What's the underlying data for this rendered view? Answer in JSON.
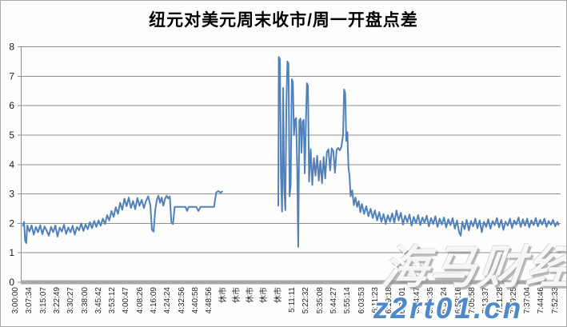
{
  "watermarks": {
    "brand": "海马财经",
    "url": "z2rt01.cn",
    "url_color": "#4e8ac9"
  },
  "chart_data": {
    "type": "line",
    "title": "纽元对美元周末收市/周一开盘点差",
    "xlabel": "",
    "ylabel": "",
    "ylim": [
      0,
      8
    ],
    "yticks": [
      0,
      1,
      2,
      3,
      4,
      5,
      6,
      7,
      8
    ],
    "grid": "horizontal",
    "legend": "none",
    "x_label_rotation": -90,
    "line_color": "#4f81bd",
    "gridline_color": "#8f8f8f",
    "axis_color": "#a8a8a8",
    "x_labels": [
      "3:00:00",
      "3:07:34",
      "3:15:07",
      "3:22:49",
      "3:30:27",
      "3:38:00",
      "3:45:42",
      "3:53:12",
      "4:00:47",
      "4:08:26",
      "4:16:09",
      "4:24:24",
      "4:32:56",
      "4:40:58",
      "4:48:56",
      "休市",
      "休市",
      "休市",
      "休市",
      "休市",
      "5:11:11",
      "5:22:32",
      "5:35:08",
      "5:44:27",
      "5:55:14",
      "6:03:53",
      "6:11:23",
      "6:19:18",
      "6:27:01",
      "6:34:47",
      "6:42:35",
      "6:50:24",
      "6:58:16",
      "7:05:58",
      "7:13:37",
      "7:21:28",
      "7:29:25",
      "7:37:04",
      "7:44:46",
      "7:52:33"
    ],
    "series": [
      {
        "name": "周末收市/周一开盘点差",
        "note": "x = fraction of plot width (0=left axis, 1=right edge); gap between segments = 休市 market closure",
        "segments": [
          [
            [
              0.004,
              1.92
            ],
            [
              0.006,
              2.05
            ],
            [
              0.008,
              1.42
            ],
            [
              0.01,
              1.33
            ],
            [
              0.012,
              1.93
            ],
            [
              0.016,
              1.72
            ],
            [
              0.02,
              1.93
            ],
            [
              0.024,
              1.62
            ],
            [
              0.028,
              1.88
            ],
            [
              0.032,
              1.7
            ],
            [
              0.036,
              1.94
            ],
            [
              0.04,
              1.63
            ],
            [
              0.044,
              1.9
            ],
            [
              0.048,
              1.75
            ],
            [
              0.052,
              1.58
            ],
            [
              0.056,
              1.88
            ],
            [
              0.06,
              1.7
            ],
            [
              0.064,
              1.93
            ],
            [
              0.068,
              1.55
            ],
            [
              0.072,
              1.86
            ],
            [
              0.076,
              1.72
            ],
            [
              0.08,
              1.95
            ],
            [
              0.084,
              1.64
            ],
            [
              0.088,
              1.86
            ],
            [
              0.092,
              1.7
            ],
            [
              0.096,
              1.92
            ],
            [
              0.1,
              1.62
            ],
            [
              0.104,
              1.88
            ],
            [
              0.108,
              1.76
            ],
            [
              0.112,
              2.0
            ],
            [
              0.116,
              1.74
            ],
            [
              0.12,
              1.96
            ],
            [
              0.124,
              1.8
            ],
            [
              0.128,
              2.04
            ],
            [
              0.132,
              1.84
            ],
            [
              0.136,
              2.08
            ],
            [
              0.14,
              1.88
            ],
            [
              0.144,
              2.1
            ],
            [
              0.148,
              1.92
            ],
            [
              0.152,
              2.16
            ],
            [
              0.156,
              1.98
            ],
            [
              0.16,
              2.28
            ],
            [
              0.164,
              2.1
            ],
            [
              0.168,
              2.42
            ],
            [
              0.172,
              2.22
            ],
            [
              0.176,
              2.55
            ],
            [
              0.18,
              2.32
            ],
            [
              0.184,
              2.7
            ],
            [
              0.188,
              2.46
            ],
            [
              0.192,
              2.84
            ],
            [
              0.196,
              2.58
            ],
            [
              0.2,
              2.88
            ],
            [
              0.204,
              2.52
            ],
            [
              0.208,
              2.76
            ],
            [
              0.212,
              2.48
            ],
            [
              0.216,
              2.86
            ],
            [
              0.22,
              2.6
            ],
            [
              0.224,
              2.8
            ],
            [
              0.228,
              2.52
            ],
            [
              0.232,
              2.76
            ],
            [
              0.236,
              2.92
            ],
            [
              0.24,
              2.62
            ],
            [
              0.243,
              1.78
            ],
            [
              0.246,
              1.72
            ],
            [
              0.249,
              2.45
            ],
            [
              0.252,
              2.8
            ],
            [
              0.255,
              2.94
            ],
            [
              0.258,
              2.7
            ],
            [
              0.261,
              2.88
            ],
            [
              0.264,
              2.6
            ],
            [
              0.267,
              2.82
            ],
            [
              0.27,
              2.94
            ],
            [
              0.273,
              2.85
            ],
            [
              0.276,
              2.92
            ],
            [
              0.279,
              2.02
            ],
            [
              0.282,
              1.98
            ],
            [
              0.285,
              2.56
            ],
            [
              0.295,
              2.56
            ],
            [
              0.305,
              2.56
            ],
            [
              0.308,
              2.42
            ],
            [
              0.311,
              2.56
            ],
            [
              0.325,
              2.56
            ],
            [
              0.329,
              2.42
            ],
            [
              0.333,
              2.56
            ],
            [
              0.345,
              2.56
            ],
            [
              0.358,
              2.56
            ],
            [
              0.362,
              3.05
            ],
            [
              0.366,
              3.1
            ],
            [
              0.37,
              3.04
            ],
            [
              0.373,
              3.08
            ]
          ],
          [
            [
              0.477,
              2.6
            ],
            [
              0.478,
              7.65
            ],
            [
              0.48,
              7.58
            ],
            [
              0.482,
              3.6
            ],
            [
              0.484,
              2.4
            ],
            [
              0.486,
              6.6
            ],
            [
              0.488,
              3.2
            ],
            [
              0.49,
              2.45
            ],
            [
              0.492,
              6.0
            ],
            [
              0.494,
              7.5
            ],
            [
              0.496,
              7.42
            ],
            [
              0.498,
              2.92
            ],
            [
              0.5,
              3.3
            ],
            [
              0.502,
              6.9
            ],
            [
              0.504,
              6.82
            ],
            [
              0.506,
              5.0
            ],
            [
              0.508,
              5.52
            ],
            [
              0.51,
              5.58
            ],
            [
              0.512,
              3.9
            ],
            [
              0.514,
              1.2
            ],
            [
              0.516,
              5.5
            ],
            [
              0.518,
              5.56
            ],
            [
              0.52,
              4.4
            ],
            [
              0.522,
              5.46
            ],
            [
              0.524,
              5.52
            ],
            [
              0.526,
              3.7
            ],
            [
              0.528,
              5.3
            ],
            [
              0.53,
              6.76
            ],
            [
              0.532,
              6.68
            ],
            [
              0.534,
              3.42
            ],
            [
              0.537,
              4.52
            ],
            [
              0.54,
              3.3
            ],
            [
              0.543,
              4.22
            ],
            [
              0.546,
              3.62
            ],
            [
              0.549,
              4.3
            ],
            [
              0.552,
              3.45
            ],
            [
              0.555,
              4.12
            ],
            [
              0.558,
              3.36
            ],
            [
              0.561,
              4.26
            ],
            [
              0.564,
              3.52
            ],
            [
              0.567,
              4.42
            ],
            [
              0.57,
              4.52
            ],
            [
              0.573,
              3.8
            ],
            [
              0.576,
              4.55
            ],
            [
              0.579,
              4.46
            ],
            [
              0.582,
              3.72
            ],
            [
              0.585,
              4.5
            ],
            [
              0.588,
              4.56
            ],
            [
              0.591,
              4.48
            ],
            [
              0.594,
              4.6
            ],
            [
              0.597,
              5.02
            ],
            [
              0.599,
              6.55
            ],
            [
              0.601,
              6.42
            ],
            [
              0.603,
              4.8
            ],
            [
              0.605,
              5.1
            ],
            [
              0.607,
              3.92
            ],
            [
              0.609,
              3.6
            ],
            [
              0.611,
              2.92
            ],
            [
              0.614,
              3.12
            ],
            [
              0.617,
              2.62
            ],
            [
              0.62,
              2.88
            ],
            [
              0.623,
              2.56
            ],
            [
              0.626,
              2.76
            ],
            [
              0.629,
              2.38
            ],
            [
              0.632,
              2.66
            ],
            [
              0.636,
              2.32
            ],
            [
              0.64,
              2.58
            ],
            [
              0.644,
              2.24
            ],
            [
              0.648,
              2.5
            ],
            [
              0.652,
              2.18
            ],
            [
              0.656,
              2.44
            ],
            [
              0.66,
              2.1
            ],
            [
              0.664,
              2.38
            ],
            [
              0.668,
              2.05
            ],
            [
              0.672,
              2.32
            ],
            [
              0.676,
              1.98
            ],
            [
              0.68,
              2.28
            ],
            [
              0.684,
              2.06
            ],
            [
              0.688,
              2.34
            ],
            [
              0.692,
              2.02
            ],
            [
              0.696,
              2.44
            ],
            [
              0.7,
              2.1
            ],
            [
              0.704,
              2.36
            ],
            [
              0.708,
              1.96
            ],
            [
              0.712,
              2.26
            ],
            [
              0.716,
              2.04
            ],
            [
              0.72,
              2.3
            ],
            [
              0.724,
              1.92
            ],
            [
              0.728,
              2.22
            ],
            [
              0.732,
              2.0
            ],
            [
              0.736,
              2.28
            ],
            [
              0.74,
              1.94
            ],
            [
              0.744,
              2.2
            ],
            [
              0.748,
              2.02
            ],
            [
              0.752,
              2.26
            ],
            [
              0.756,
              1.9
            ],
            [
              0.76,
              2.18
            ],
            [
              0.764,
              1.98
            ],
            [
              0.768,
              2.24
            ],
            [
              0.772,
              1.88
            ],
            [
              0.776,
              2.16
            ],
            [
              0.78,
              1.96
            ],
            [
              0.784,
              2.2
            ],
            [
              0.788,
              1.86
            ],
            [
              0.792,
              2.14
            ],
            [
              0.796,
              1.94
            ],
            [
              0.8,
              2.18
            ],
            [
              0.804,
              1.82
            ],
            [
              0.808,
              2.1
            ],
            [
              0.812,
              1.7
            ],
            [
              0.815,
              1.58
            ],
            [
              0.818,
              2.06
            ],
            [
              0.822,
              1.8
            ],
            [
              0.826,
              2.12
            ],
            [
              0.83,
              1.76
            ],
            [
              0.834,
              2.08
            ],
            [
              0.838,
              1.9
            ],
            [
              0.842,
              2.16
            ],
            [
              0.846,
              1.84
            ],
            [
              0.85,
              2.1
            ],
            [
              0.854,
              1.7
            ],
            [
              0.858,
              2.05
            ],
            [
              0.862,
              1.88
            ],
            [
              0.866,
              2.14
            ],
            [
              0.87,
              1.82
            ],
            [
              0.874,
              2.08
            ],
            [
              0.878,
              1.94
            ],
            [
              0.882,
              2.18
            ],
            [
              0.886,
              1.86
            ],
            [
              0.89,
              2.12
            ],
            [
              0.894,
              1.78
            ],
            [
              0.898,
              2.06
            ],
            [
              0.902,
              1.92
            ],
            [
              0.906,
              2.16
            ],
            [
              0.91,
              1.84
            ],
            [
              0.914,
              2.1
            ],
            [
              0.918,
              1.96
            ],
            [
              0.922,
              2.2
            ],
            [
              0.926,
              1.88
            ],
            [
              0.93,
              2.14
            ],
            [
              0.934,
              1.92
            ],
            [
              0.938,
              2.16
            ],
            [
              0.942,
              1.86
            ],
            [
              0.946,
              2.1
            ],
            [
              0.95,
              1.94
            ],
            [
              0.954,
              2.18
            ],
            [
              0.958,
              1.9
            ],
            [
              0.962,
              2.12
            ],
            [
              0.966,
              1.96
            ],
            [
              0.97,
              2.16
            ],
            [
              0.974,
              1.88
            ],
            [
              0.978,
              2.08
            ],
            [
              0.982,
              1.95
            ],
            [
              0.986,
              2.12
            ],
            [
              0.99,
              1.9
            ],
            [
              0.994,
              2.05
            ],
            [
              0.996,
              1.95
            ]
          ]
        ]
      }
    ]
  }
}
